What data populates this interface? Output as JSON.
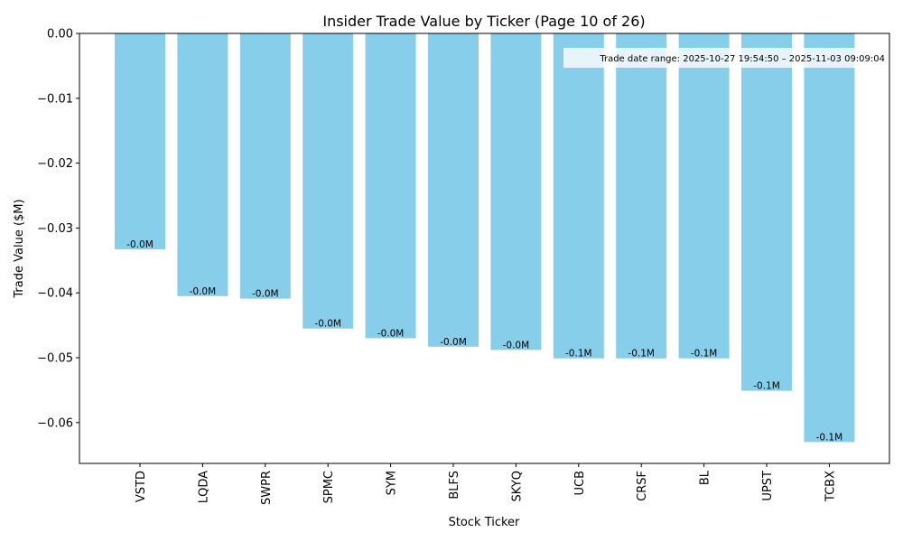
{
  "chart_data": {
    "type": "bar",
    "title": "Insider Trade Value by Ticker (Page 10 of 26)",
    "xlabel": "Stock Ticker",
    "ylabel": "Trade Value ($M)",
    "ylim": [
      -0.0663,
      0.0
    ],
    "yticks": [
      0.0,
      -0.01,
      -0.02,
      -0.03,
      -0.04,
      -0.05,
      -0.06
    ],
    "ytick_labels": [
      "0.00",
      "−0.01",
      "−0.02",
      "−0.03",
      "−0.04",
      "−0.05",
      "−0.06"
    ],
    "categories": [
      "VSTD",
      "LQDA",
      "SWPR",
      "SPMC",
      "SYM",
      "BLFS",
      "SKYQ",
      "UCB",
      "CRSF",
      "BL",
      "UPST",
      "TCBX"
    ],
    "values": [
      -0.0333,
      -0.0405,
      -0.0409,
      -0.0455,
      -0.047,
      -0.0483,
      -0.0488,
      -0.0501,
      -0.0501,
      -0.0501,
      -0.0551,
      -0.063
    ],
    "data_labels": [
      "-0.0M",
      "-0.0M",
      "-0.0M",
      "-0.0M",
      "-0.0M",
      "-0.0M",
      "-0.0M",
      "-0.1M",
      "-0.1M",
      "-0.1M",
      "-0.1M",
      "-0.1M"
    ],
    "annotation": "Trade date range: 2025-10-27 19:54:50 – 2025-11-03 09:09:04",
    "bar_color": "#87ceeb",
    "grid": false
  }
}
